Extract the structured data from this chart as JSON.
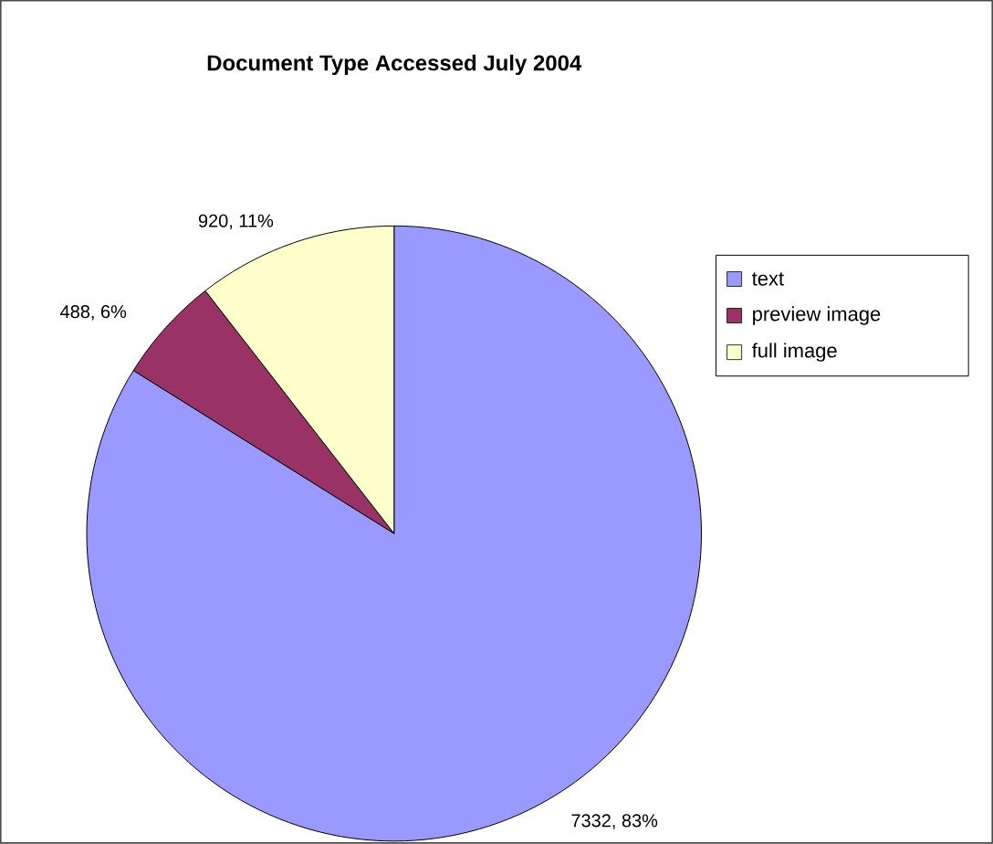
{
  "chart_data": {
    "type": "pie",
    "title": "Document Type Accessed July 2004",
    "categories": [
      "text",
      "preview image",
      "full image"
    ],
    "values": [
      7332,
      488,
      920
    ],
    "colors": [
      "#9999ff",
      "#993366",
      "#ffffcc"
    ],
    "value_labels": [
      "7332, 83%",
      "488, 6%",
      "920, 11%"
    ],
    "legend": "right"
  }
}
